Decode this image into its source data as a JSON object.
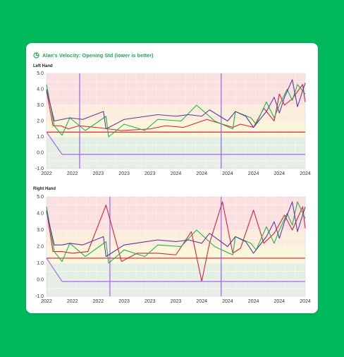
{
  "card": {
    "title": "Alan's Velocity: Opening Std (lower is better)"
  },
  "colors": {
    "background": "#00b85c",
    "title": "#1aa64f",
    "red": "#d9223a",
    "green": "#1fb24a",
    "purple": "#5b3e9a",
    "marker": "#a56af0",
    "band_red": "#fbe0e2",
    "band_orange": "#fcecdc",
    "band_yellow": "#fbf5d9",
    "band_green": "#e4efe4",
    "band_gray": "#e8ede8"
  },
  "chart_data": [
    {
      "type": "line",
      "panel": "Left Hand",
      "ylim": [
        -1.0,
        5.0
      ],
      "y_ticks": [
        "5.0",
        "4.0",
        "3.0",
        "2.0",
        "1.0",
        "0.0",
        "-1.0"
      ],
      "x_tick_labels": [
        "2022",
        "2022",
        "2023",
        "2023",
        "2023",
        "2024",
        "2024",
        "2024",
        "2024",
        "2024",
        "2024"
      ],
      "grid": true,
      "bands": [
        {
          "from": 3.0,
          "to": 5.0,
          "color": "band_red"
        },
        {
          "from": 2.0,
          "to": 3.0,
          "color": "band_orange"
        },
        {
          "from": 1.0,
          "to": 2.0,
          "color": "band_yellow"
        },
        {
          "from": 0.0,
          "to": 1.0,
          "color": "band_green"
        },
        {
          "from": -1.0,
          "to": 0.0,
          "color": "band_gray"
        }
      ],
      "reference_line": {
        "y": 1.3,
        "color": "red"
      },
      "vertical_markers": [
        0.128,
        0.675
      ],
      "series": [
        {
          "color": "red",
          "x": [
            0,
            0.025,
            0.055,
            0.085,
            0.125,
            0.19,
            0.29,
            0.4,
            0.46,
            0.53,
            0.62,
            0.72,
            0.75,
            0.8,
            0.84,
            0.88,
            0.9,
            0.92,
            0.95,
            0.99,
            1.0
          ],
          "y": [
            3.9,
            1.7,
            1.7,
            1.5,
            1.7,
            1.6,
            1.4,
            1.5,
            1.7,
            1.6,
            2.1,
            1.6,
            1.8,
            1.6,
            2.8,
            2.0,
            3.7,
            3.0,
            3.4,
            4.3,
            3.2
          ]
        },
        {
          "color": "green",
          "x": [
            0,
            0.03,
            0.06,
            0.09,
            0.15,
            0.23,
            0.24,
            0.3,
            0.38,
            0.43,
            0.52,
            0.58,
            0.65,
            0.72,
            0.73,
            0.79,
            0.81,
            0.85,
            0.88,
            0.9,
            0.93,
            0.95,
            0.97,
            1.0
          ],
          "y": [
            4.3,
            1.7,
            1.1,
            2.2,
            1.4,
            2.3,
            1.0,
            1.8,
            1.4,
            2.1,
            2.0,
            3.0,
            2.0,
            1.5,
            2.6,
            2.2,
            1.8,
            3.2,
            2.2,
            3.0,
            4.0,
            3.3,
            4.3,
            3.7
          ]
        },
        {
          "color": "purple",
          "x": [
            0,
            0.03,
            0.06,
            0.09,
            0.14,
            0.22,
            0.23,
            0.3,
            0.43,
            0.5,
            0.55,
            0.6,
            0.63,
            0.7,
            0.73,
            0.77,
            0.8,
            0.85,
            0.88,
            0.9,
            0.92,
            0.95,
            0.97,
            1.0
          ],
          "y": [
            4.0,
            2.0,
            2.1,
            2.2,
            2.1,
            2.6,
            1.5,
            2.1,
            2.4,
            2.3,
            2.4,
            2.3,
            2.7,
            2.0,
            2.6,
            2.3,
            1.6,
            2.6,
            3.5,
            2.5,
            3.5,
            4.6,
            2.9,
            4.4
          ]
        },
        {
          "color": "marker",
          "x": [
            0,
            0.06,
            1.0
          ],
          "y": [
            1.3,
            -0.1,
            -0.1
          ]
        }
      ]
    },
    {
      "type": "line",
      "panel": "Right Hand",
      "ylim": [
        -1.0,
        5.0
      ],
      "y_ticks": [
        "5.0",
        "4.0",
        "3.0",
        "2.0",
        "1.0",
        "0.0",
        "-1.0"
      ],
      "x_tick_labels": [
        "2022",
        "2022",
        "2022",
        "2023",
        "2023",
        "2023",
        "2024",
        "2024",
        "2024",
        "2024",
        "2024"
      ],
      "grid": true,
      "bands": [
        {
          "from": 3.0,
          "to": 5.0,
          "color": "band_red"
        },
        {
          "from": 2.0,
          "to": 3.0,
          "color": "band_orange"
        },
        {
          "from": 1.0,
          "to": 2.0,
          "color": "band_yellow"
        },
        {
          "from": 0.0,
          "to": 1.0,
          "color": "band_green"
        },
        {
          "from": -1.0,
          "to": 0.0,
          "color": "band_gray"
        }
      ],
      "reference_line": {
        "y": 1.3,
        "color": "red"
      },
      "vertical_markers": [
        0.245,
        0.675
      ],
      "series": [
        {
          "color": "red",
          "x": [
            0,
            0.025,
            0.06,
            0.1,
            0.16,
            0.23,
            0.29,
            0.35,
            0.43,
            0.5,
            0.56,
            0.6,
            0.63,
            0.68,
            0.72,
            0.75,
            0.8,
            0.84,
            0.88,
            0.92,
            0.95,
            0.99,
            1.0
          ],
          "y": [
            4.2,
            1.7,
            1.7,
            1.6,
            1.7,
            4.5,
            1.1,
            1.6,
            1.6,
            1.5,
            2.9,
            -0.1,
            2.2,
            4.7,
            1.6,
            1.9,
            4.2,
            2.2,
            2.8,
            3.9,
            3.0,
            4.4,
            3.1
          ]
        },
        {
          "color": "green",
          "x": [
            0,
            0.03,
            0.06,
            0.09,
            0.15,
            0.23,
            0.24,
            0.3,
            0.38,
            0.43,
            0.52,
            0.58,
            0.65,
            0.72,
            0.73,
            0.79,
            0.81,
            0.85,
            0.88,
            0.9,
            0.93,
            0.95,
            0.97,
            1.0
          ],
          "y": [
            4.4,
            1.7,
            1.1,
            2.2,
            1.4,
            2.3,
            1.0,
            1.8,
            1.4,
            2.1,
            2.0,
            3.0,
            2.0,
            1.5,
            2.6,
            2.2,
            1.8,
            3.2,
            2.2,
            3.0,
            4.0,
            3.3,
            4.7,
            3.7
          ]
        },
        {
          "color": "purple",
          "x": [
            0,
            0.03,
            0.06,
            0.09,
            0.14,
            0.22,
            0.23,
            0.3,
            0.43,
            0.5,
            0.55,
            0.6,
            0.63,
            0.7,
            0.73,
            0.77,
            0.8,
            0.85,
            0.88,
            0.9,
            0.92,
            0.95,
            0.97,
            1.0
          ],
          "y": [
            4.1,
            2.1,
            2.1,
            2.2,
            2.1,
            2.6,
            1.4,
            2.1,
            2.4,
            2.3,
            2.4,
            2.2,
            2.8,
            2.0,
            2.6,
            2.3,
            1.6,
            2.6,
            3.5,
            2.5,
            3.5,
            4.7,
            2.9,
            4.4
          ]
        },
        {
          "color": "marker",
          "x": [
            0,
            0.06,
            1.0
          ],
          "y": [
            1.3,
            -0.1,
            -0.1
          ]
        }
      ]
    }
  ]
}
